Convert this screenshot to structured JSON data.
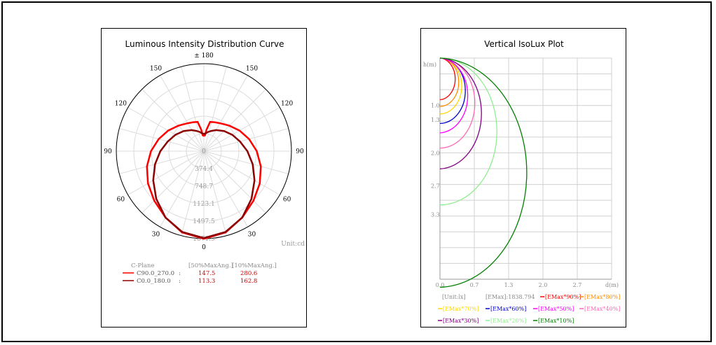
{
  "chart_data": [
    {
      "type": "polar",
      "title": "Luminous Intensity Distribution Curve",
      "angle_labels": [
        {
          "text": "± 180",
          "angle": 180
        },
        {
          "text": "150",
          "angle": 150
        },
        {
          "text": "150",
          "angle": -150
        },
        {
          "text": "120",
          "angle": 120
        },
        {
          "text": "120",
          "angle": -120
        },
        {
          "text": "90",
          "angle": 90
        },
        {
          "text": "90",
          "angle": -90
        },
        {
          "text": "60",
          "angle": 60
        },
        {
          "text": "60",
          "angle": -60
        },
        {
          "text": "30",
          "angle": 30
        },
        {
          "text": "30",
          "angle": -30
        },
        {
          "text": "0",
          "angle": 0
        }
      ],
      "radial_labels": [
        "0",
        "374.4",
        "748.7",
        "1123.1",
        "1497.5",
        "1871.9"
      ],
      "r_max": 1871.9,
      "unit_label": "Unit:cd",
      "table_header": {
        "plane": "C-Plane",
        "col50": "[50%MaxAng.]",
        "col10": "[10%MaxAng.]"
      },
      "series": [
        {
          "name": "C90.0_270.0",
          "sep": ":",
          "v50": "147.5",
          "v10": "280.6",
          "color": "#ff0000",
          "points": [
            [
              0,
              1875
            ],
            [
              15,
              1800
            ],
            [
              30,
              1640
            ],
            [
              45,
              1500
            ],
            [
              60,
              1380
            ],
            [
              75,
              1260
            ],
            [
              90,
              1130
            ],
            [
              105,
              1000
            ],
            [
              120,
              880
            ],
            [
              135,
              770
            ],
            [
              150,
              690
            ],
            [
              160,
              660
            ],
            [
              168,
              640
            ],
            [
              173,
              460
            ],
            [
              176,
              340
            ],
            [
              180,
              330
            ]
          ]
        },
        {
          "name": "C0.0_180.0",
          "sep": ":",
          "v50": "113.3",
          "v10": "162.8",
          "color": "#8b0000",
          "points": [
            [
              0,
              1860
            ],
            [
              15,
              1790
            ],
            [
              30,
              1640
            ],
            [
              45,
              1440
            ],
            [
              60,
              1250
            ],
            [
              75,
              1080
            ],
            [
              90,
              930
            ],
            [
              105,
              800
            ],
            [
              120,
              700
            ],
            [
              135,
              610
            ],
            [
              150,
              520
            ],
            [
              160,
              460
            ],
            [
              168,
              420
            ],
            [
              175,
              380
            ],
            [
              180,
              370
            ]
          ]
        }
      ]
    },
    {
      "type": "line",
      "title": "Vertical IsoLux Plot",
      "ylabel": "h(m)",
      "xlabel": "d(m)",
      "x_ticks": [
        "0.0",
        "0.7",
        "1.3",
        "2.0",
        "2.7"
      ],
      "y_ticks": [
        "1.0",
        "1.3",
        "2.0",
        "2.7",
        "3.3"
      ],
      "x_range": [
        0,
        4.67
      ],
      "y_range": [
        0,
        4.67
      ],
      "unit": "[Unit:lx]",
      "emax": "[EMax]:1838.794",
      "series": [
        {
          "name": "[EMax*90%]",
          "color": "#ff0000",
          "radius": 0.44
        },
        {
          "name": "[EMax*80%]",
          "color": "#ff8c00",
          "radius": 0.51
        },
        {
          "name": "[EMax*70%]",
          "color": "#ffd700",
          "radius": 0.59
        },
        {
          "name": "[EMax*60%]",
          "color": "#0000cd",
          "radius": 0.69
        },
        {
          "name": "[EMax*50%]",
          "color": "#ff00ff",
          "radius": 0.79
        },
        {
          "name": "[EMax*40%]",
          "color": "#ff69b4",
          "radius": 0.95
        },
        {
          "name": "[EMax*30%]",
          "color": "#800080",
          "radius": 1.17
        },
        {
          "name": "[EMax*20%]",
          "color": "#90ee90",
          "radius": 1.55
        },
        {
          "name": "[EMax*10%]",
          "color": "#008000",
          "radius": 2.42
        }
      ]
    }
  ]
}
